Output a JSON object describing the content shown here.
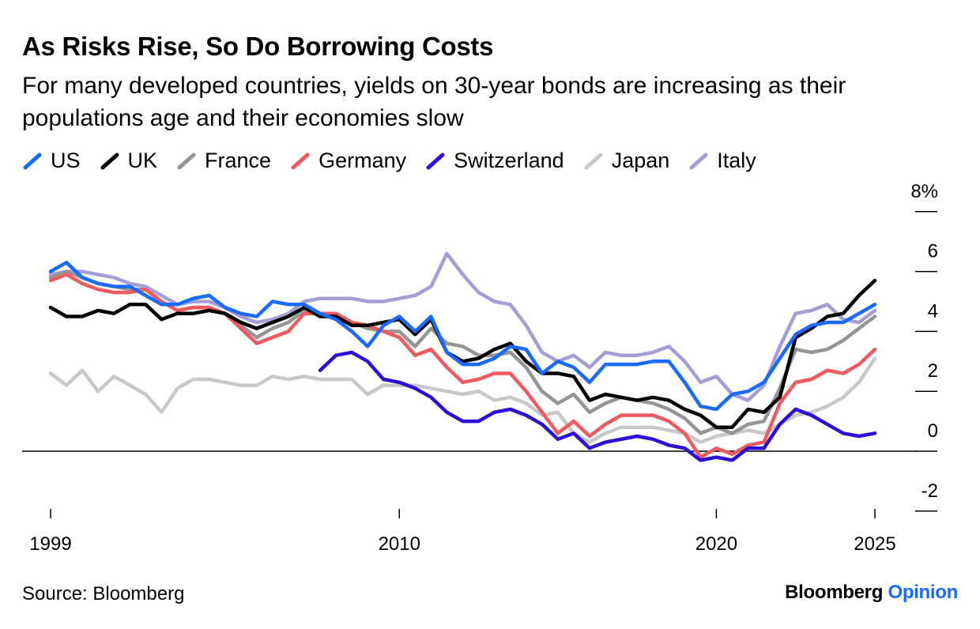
{
  "header": {
    "title": "As Risks Rise, So Do Borrowing Costs",
    "subtitle": "For many developed countries, yields on 30-year bonds are increasing as their populations age and their economies slow"
  },
  "footer": {
    "source": "Source: Bloomberg",
    "brand_part1": "Bloomberg",
    "brand_part2": "Opinion",
    "brand_accent": "#1a6aff"
  },
  "chart_data": {
    "type": "line",
    "title": "As Risks Rise, So Do Borrowing Costs",
    "subtitle": "For many developed countries, yields on 30-year bonds are increasing as their populations age and their economies slow",
    "xlabel": "",
    "ylabel": "",
    "xlim": [
      1999,
      2026
    ],
    "ylim": [
      -2,
      8
    ],
    "x_ticks": [
      1999,
      2010,
      2020,
      2025
    ],
    "x_tick_labels": [
      "1999",
      "2010",
      "2020",
      "2025"
    ],
    "y_ticks": [
      -2,
      0,
      2,
      4,
      6,
      8
    ],
    "y_tick_labels": [
      "-2",
      "0",
      "2",
      "4",
      "6",
      "8%"
    ],
    "y_axis_side": "right",
    "grid": false,
    "legend_position": "top-left",
    "series": [
      {
        "name": "Japan",
        "color": "#c8c8c8",
        "x": [
          1999,
          1999.5,
          2000,
          2000.5,
          2001,
          2001.5,
          2002,
          2002.5,
          2003,
          2003.5,
          2004,
          2004.5,
          2005,
          2005.5,
          2006,
          2006.5,
          2007,
          2007.5,
          2008,
          2008.5,
          2009,
          2009.5,
          2010,
          2010.5,
          2011,
          2011.5,
          2012,
          2012.5,
          2013,
          2013.5,
          2014,
          2014.5,
          2015,
          2015.5,
          2016,
          2016.5,
          2017,
          2017.5,
          2018,
          2018.5,
          2019,
          2019.5,
          2020,
          2020.5,
          2021,
          2021.5,
          2022,
          2022.5,
          2023,
          2023.5,
          2024,
          2024.5,
          2025
        ],
        "y": [
          2.6,
          2.2,
          2.7,
          2.0,
          2.5,
          2.2,
          1.9,
          1.3,
          2.1,
          2.4,
          2.4,
          2.3,
          2.2,
          2.2,
          2.5,
          2.4,
          2.5,
          2.4,
          2.4,
          2.4,
          1.9,
          2.2,
          2.2,
          2.2,
          2.1,
          2.0,
          1.9,
          2.0,
          1.7,
          1.8,
          1.6,
          1.2,
          1.3,
          0.6,
          0.3,
          0.6,
          0.8,
          0.8,
          0.8,
          0.7,
          0.6,
          0.3,
          0.5,
          0.6,
          0.7,
          0.6,
          0.9,
          1.2,
          1.3,
          1.5,
          1.8,
          2.3,
          3.1
        ]
      },
      {
        "name": "Italy",
        "color": "#a49ed6",
        "x": [
          1999,
          1999.5,
          2000,
          2000.5,
          2001,
          2001.5,
          2002,
          2002.5,
          2003,
          2003.5,
          2004,
          2004.5,
          2005,
          2005.5,
          2006,
          2006.5,
          2007,
          2007.5,
          2008,
          2008.5,
          2009,
          2009.5,
          2010,
          2010.5,
          2011,
          2011.5,
          2012,
          2012.5,
          2013,
          2013.5,
          2014,
          2014.5,
          2015,
          2015.5,
          2016,
          2016.5,
          2017,
          2017.5,
          2018,
          2018.5,
          2019,
          2019.5,
          2020,
          2020.5,
          2021,
          2021.5,
          2022,
          2022.5,
          2023,
          2023.5,
          2024,
          2024.5,
          2025
        ],
        "y": [
          5.9,
          6.0,
          6.0,
          5.9,
          5.8,
          5.6,
          5.5,
          5.2,
          4.9,
          5.0,
          5.0,
          4.8,
          4.5,
          4.3,
          4.4,
          4.6,
          5.0,
          5.1,
          5.1,
          5.1,
          5.0,
          5.0,
          5.1,
          5.2,
          5.5,
          6.6,
          5.9,
          5.3,
          5.0,
          4.9,
          4.2,
          3.3,
          3.0,
          3.2,
          2.8,
          3.3,
          3.2,
          3.2,
          3.3,
          3.5,
          3.0,
          2.3,
          2.5,
          1.9,
          1.7,
          2.2,
          3.5,
          4.6,
          4.7,
          4.9,
          4.4,
          4.3,
          4.7
        ]
      },
      {
        "name": "France",
        "color": "#959595",
        "x": [
          1999,
          1999.5,
          2000,
          2000.5,
          2001,
          2001.5,
          2002,
          2002.5,
          2003,
          2003.5,
          2004,
          2004.5,
          2005,
          2005.5,
          2006,
          2006.5,
          2007,
          2007.5,
          2008,
          2008.5,
          2009,
          2009.5,
          2010,
          2010.5,
          2011,
          2011.5,
          2012,
          2012.5,
          2013,
          2013.5,
          2014,
          2014.5,
          2015,
          2015.5,
          2016,
          2016.5,
          2017,
          2017.5,
          2018,
          2018.5,
          2019,
          2019.5,
          2020,
          2020.5,
          2021,
          2021.5,
          2022,
          2022.5,
          2023,
          2023.5,
          2024,
          2024.5,
          2025
        ],
        "y": [
          5.8,
          6.0,
          5.8,
          5.6,
          5.5,
          5.4,
          5.4,
          5.0,
          4.7,
          4.8,
          4.8,
          4.6,
          4.2,
          3.8,
          4.1,
          4.3,
          4.7,
          4.6,
          4.6,
          4.3,
          4.1,
          4.0,
          4.0,
          3.5,
          4.1,
          3.6,
          3.5,
          3.2,
          3.2,
          3.3,
          2.8,
          2.0,
          1.6,
          1.9,
          1.3,
          1.6,
          1.8,
          1.7,
          1.6,
          1.4,
          1.1,
          0.6,
          0.8,
          0.6,
          0.9,
          1.0,
          2.1,
          3.4,
          3.3,
          3.4,
          3.7,
          4.1,
          4.5
        ]
      },
      {
        "name": "Germany",
        "color": "#f05a5f",
        "x": [
          1999,
          1999.5,
          2000,
          2000.5,
          2001,
          2001.5,
          2002,
          2002.5,
          2003,
          2003.5,
          2004,
          2004.5,
          2005,
          2005.5,
          2006,
          2006.5,
          2007,
          2007.5,
          2008,
          2008.5,
          2009,
          2009.5,
          2010,
          2010.5,
          2011,
          2011.5,
          2012,
          2012.5,
          2013,
          2013.5,
          2014,
          2014.5,
          2015,
          2015.5,
          2016,
          2016.5,
          2017,
          2017.5,
          2018,
          2018.5,
          2019,
          2019.5,
          2020,
          2020.5,
          2021,
          2021.5,
          2022,
          2022.5,
          2023,
          2023.5,
          2024,
          2024.5,
          2025
        ],
        "y": [
          5.7,
          5.9,
          5.6,
          5.4,
          5.3,
          5.3,
          5.4,
          5.0,
          4.7,
          4.8,
          4.8,
          4.6,
          4.1,
          3.6,
          3.8,
          4.0,
          4.6,
          4.6,
          4.6,
          4.3,
          4.2,
          4.0,
          3.8,
          3.2,
          3.4,
          2.8,
          2.3,
          2.4,
          2.6,
          2.6,
          2.0,
          1.3,
          0.6,
          1.0,
          0.5,
          0.9,
          1.2,
          1.2,
          1.2,
          1.0,
          0.6,
          -0.2,
          0.1,
          -0.1,
          0.2,
          0.3,
          1.6,
          2.3,
          2.4,
          2.7,
          2.6,
          2.9,
          3.4
        ]
      },
      {
        "name": "UK",
        "color": "#000000",
        "x": [
          1999,
          1999.5,
          2000,
          2000.5,
          2001,
          2001.5,
          2002,
          2002.5,
          2003,
          2003.5,
          2004,
          2004.5,
          2005,
          2005.5,
          2006,
          2006.5,
          2007,
          2007.5,
          2008,
          2008.5,
          2009,
          2009.5,
          2010,
          2010.5,
          2011,
          2011.5,
          2012,
          2012.5,
          2013,
          2013.5,
          2014,
          2014.5,
          2015,
          2015.5,
          2016,
          2016.5,
          2017,
          2017.5,
          2018,
          2018.5,
          2019,
          2019.5,
          2020,
          2020.5,
          2021,
          2021.5,
          2022,
          2022.5,
          2023,
          2023.5,
          2024,
          2024.5,
          2025
        ],
        "y": [
          4.8,
          4.5,
          4.5,
          4.7,
          4.6,
          4.9,
          4.9,
          4.4,
          4.6,
          4.6,
          4.7,
          4.6,
          4.3,
          4.1,
          4.3,
          4.5,
          4.8,
          4.5,
          4.5,
          4.2,
          4.2,
          4.3,
          4.4,
          3.9,
          4.4,
          3.3,
          3.0,
          3.1,
          3.4,
          3.6,
          3.0,
          2.6,
          2.6,
          2.5,
          1.7,
          1.9,
          1.8,
          1.7,
          1.8,
          1.7,
          1.4,
          1.2,
          0.8,
          0.8,
          1.4,
          1.3,
          1.8,
          3.8,
          4.1,
          4.5,
          4.6,
          5.2,
          5.7
        ]
      },
      {
        "name": "US",
        "color": "#1a6aff",
        "x": [
          1999,
          1999.5,
          2000,
          2000.5,
          2001,
          2001.5,
          2002,
          2002.5,
          2003,
          2003.5,
          2004,
          2004.5,
          2005,
          2005.5,
          2006,
          2006.5,
          2007,
          2007.5,
          2008,
          2008.5,
          2009,
          2009.5,
          2010,
          2010.5,
          2011,
          2011.5,
          2012,
          2012.5,
          2013,
          2013.5,
          2014,
          2014.5,
          2015,
          2015.5,
          2016,
          2016.5,
          2017,
          2017.5,
          2018,
          2018.5,
          2019,
          2019.5,
          2020,
          2020.5,
          2021,
          2021.5,
          2022,
          2022.5,
          2023,
          2023.5,
          2024,
          2024.5,
          2025
        ],
        "y": [
          6.0,
          6.3,
          5.8,
          5.6,
          5.5,
          5.5,
          5.2,
          4.9,
          4.9,
          5.1,
          5.2,
          4.8,
          4.6,
          4.5,
          5.0,
          4.9,
          4.9,
          4.6,
          4.4,
          4.0,
          3.5,
          4.2,
          4.5,
          4.0,
          4.5,
          3.3,
          2.9,
          2.9,
          3.1,
          3.5,
          3.4,
          2.6,
          3.0,
          2.8,
          2.3,
          2.9,
          2.9,
          2.9,
          3.0,
          3.0,
          2.3,
          1.5,
          1.4,
          1.9,
          2.0,
          2.3,
          3.1,
          3.9,
          4.2,
          4.3,
          4.3,
          4.6,
          4.9
        ]
      },
      {
        "name": "Switzerland",
        "color": "#2b0fd9",
        "x": [
          2007.5,
          2008,
          2008.5,
          2009,
          2009.5,
          2010,
          2010.5,
          2011,
          2011.5,
          2012,
          2012.5,
          2013,
          2013.5,
          2014,
          2014.5,
          2015,
          2015.5,
          2016,
          2016.5,
          2017,
          2017.5,
          2018,
          2018.5,
          2019,
          2019.5,
          2020,
          2020.5,
          2021,
          2021.5,
          2022,
          2022.5,
          2023,
          2023.5,
          2024,
          2024.5,
          2025
        ],
        "y": [
          2.7,
          3.2,
          3.3,
          3.0,
          2.4,
          2.3,
          2.1,
          1.8,
          1.3,
          1.0,
          1.0,
          1.3,
          1.4,
          1.2,
          0.9,
          0.4,
          0.6,
          0.1,
          0.3,
          0.4,
          0.5,
          0.4,
          0.2,
          0.1,
          -0.3,
          -0.2,
          -0.3,
          0.1,
          0.1,
          0.9,
          1.4,
          1.2,
          0.9,
          0.6,
          0.5,
          0.6
        ]
      }
    ]
  },
  "legend": [
    {
      "label": "US",
      "color": "#1a6aff"
    },
    {
      "label": "UK",
      "color": "#000000"
    },
    {
      "label": "France",
      "color": "#959595"
    },
    {
      "label": "Germany",
      "color": "#f05a5f"
    },
    {
      "label": "Switzerland",
      "color": "#2b0fd9"
    },
    {
      "label": "Japan",
      "color": "#c8c8c8"
    },
    {
      "label": "Italy",
      "color": "#a49ed6"
    }
  ]
}
